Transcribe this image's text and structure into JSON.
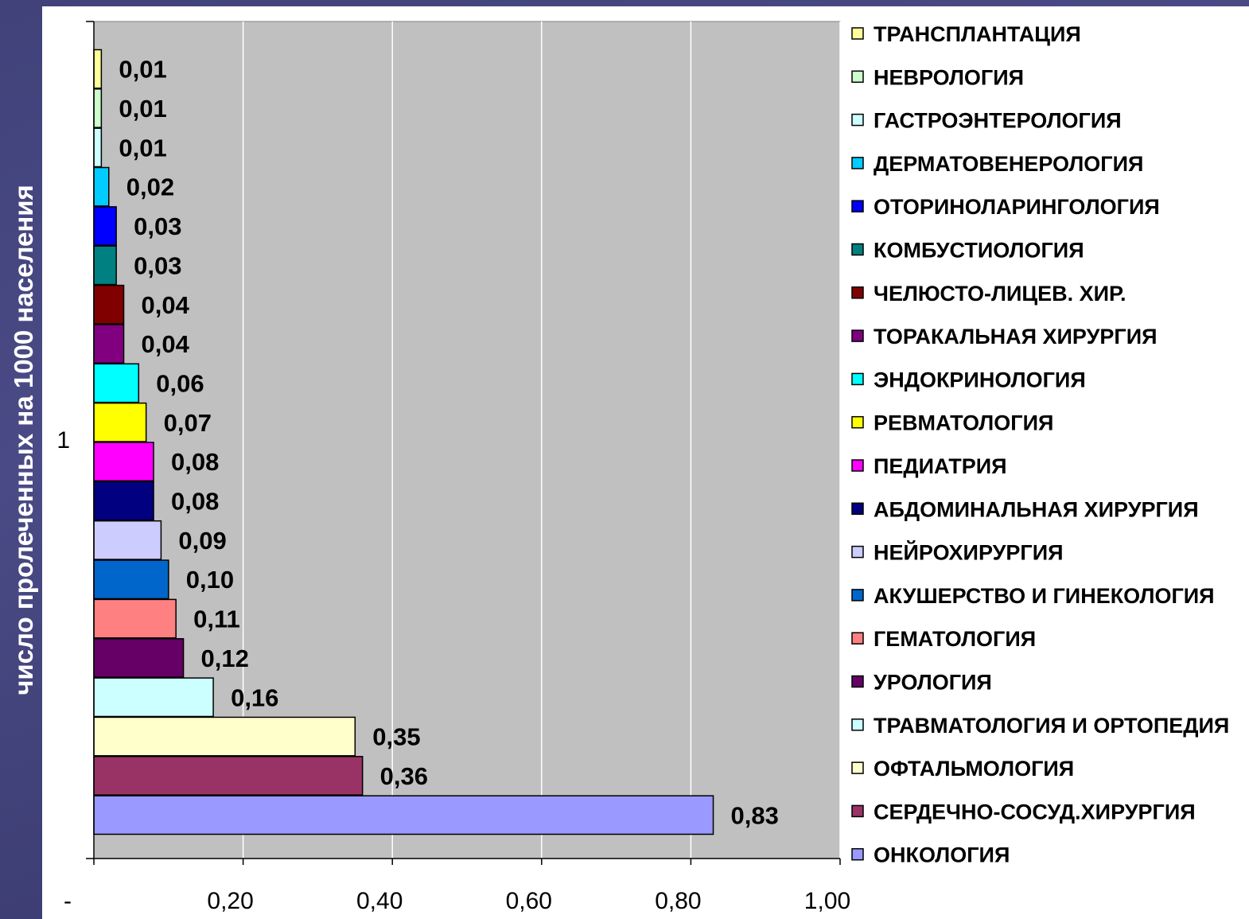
{
  "chart_data": {
    "type": "bar",
    "orientation": "horizontal",
    "category_axis_label": "1",
    "ylabel": "число пролеченных на 1000 населения",
    "xlim": [
      0,
      1.0
    ],
    "x_ticks": [
      "-",
      "0,20",
      "0,40",
      "0,60",
      "0,80",
      "1,00"
    ],
    "grid": true,
    "legend_position": "right",
    "series": [
      {
        "name": "ТРАНСПЛАНТАЦИЯ",
        "value": 0.01,
        "label": "0,01",
        "color": "#ffff99"
      },
      {
        "name": "НЕВРОЛОГИЯ",
        "value": 0.01,
        "label": "0,01",
        "color": "#ccffcc"
      },
      {
        "name": "ГАСТРОЭНТЕРОЛОГИЯ",
        "value": 0.01,
        "label": "0,01",
        "color": "#ccffff"
      },
      {
        "name": "ДЕРМАТОВЕНЕРОЛОГИЯ",
        "value": 0.02,
        "label": "0,02",
        "color": "#00ccff"
      },
      {
        "name": "ОТОРИНОЛАРИНГОЛОГИЯ",
        "value": 0.03,
        "label": "0,03",
        "color": "#0000ff"
      },
      {
        "name": "КОМБУСТИОЛОГИЯ",
        "value": 0.03,
        "label": "0,03",
        "color": "#008080"
      },
      {
        "name": "ЧЕЛЮСТО-ЛИЦЕВ. ХИР.",
        "value": 0.04,
        "label": "0,04",
        "color": "#800000"
      },
      {
        "name": "ТОРАКАЛЬНАЯ ХИРУРГИЯ",
        "value": 0.04,
        "label": "0,04",
        "color": "#800080"
      },
      {
        "name": "ЭНДОКРИНОЛОГИЯ",
        "value": 0.06,
        "label": "0,06",
        "color": "#00ffff"
      },
      {
        "name": "РЕВМАТОЛОГИЯ",
        "value": 0.07,
        "label": "0,07",
        "color": "#ffff00"
      },
      {
        "name": "ПЕДИАТРИЯ",
        "value": 0.08,
        "label": "0,08",
        "color": "#ff00ff"
      },
      {
        "name": "АБДОМИНАЛЬНАЯ ХИРУРГИЯ",
        "value": 0.08,
        "label": "0,08",
        "color": "#000080"
      },
      {
        "name": "НЕЙРОХИРУРГИЯ",
        "value": 0.09,
        "label": "0,09",
        "color": "#ccccff"
      },
      {
        "name": "АКУШЕРСТВО И ГИНЕКОЛОГИЯ",
        "value": 0.1,
        "label": "0,10",
        "color": "#0066cc"
      },
      {
        "name": "ГЕМАТОЛОГИЯ",
        "value": 0.11,
        "label": "0,11",
        "color": "#ff8080"
      },
      {
        "name": "УРОЛОГИЯ",
        "value": 0.12,
        "label": "0,12",
        "color": "#660066"
      },
      {
        "name": "ТРАВМАТОЛОГИЯ И ОРТОПЕДИЯ",
        "value": 0.16,
        "label": "0,16",
        "color": "#ccffff"
      },
      {
        "name": "ОФТАЛЬМОЛОГИЯ",
        "value": 0.35,
        "label": "0,35",
        "color": "#ffffcc"
      },
      {
        "name": "СЕРДЕЧНО-СОСУД.ХИРУРГИЯ",
        "value": 0.36,
        "label": "0,36",
        "color": "#993366"
      },
      {
        "name": "ОНКОЛОГИЯ",
        "value": 0.83,
        "label": "0,83",
        "color": "#9999ff"
      }
    ]
  },
  "colors": {
    "plot_background": "#c0c0c0",
    "gridline": "#ffffff",
    "panel": "#ffffff"
  }
}
